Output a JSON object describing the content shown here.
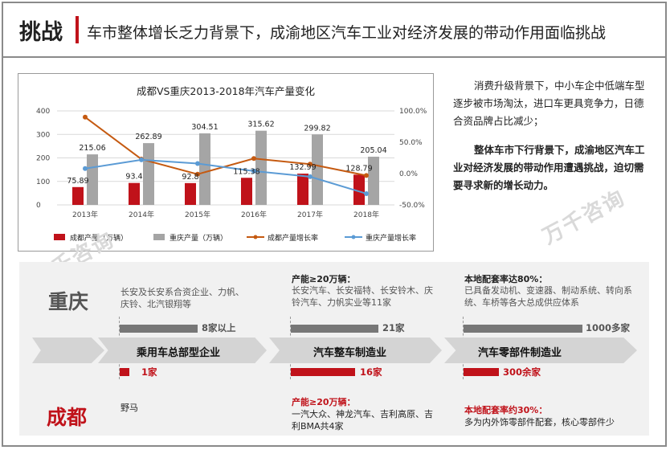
{
  "header": {
    "title": "挑战",
    "subtitle": "车市整体增长乏力背景下，成渝地区汽车工业对经济发展的带动作用面临挑战"
  },
  "colors": {
    "accent": "#c0121a",
    "gray": "#a5a5a5",
    "orange": "#c55a11",
    "blue": "#5b9bd5"
  },
  "chart_data": {
    "type": "bar",
    "title": "成都VS重庆2013-2018年汽车产量变化",
    "categories": [
      "2013年",
      "2014年",
      "2015年",
      "2016年",
      "2017年",
      "2018年"
    ],
    "series": [
      {
        "name": "成都产量（万辆）",
        "values": [
          75.89,
          93.4,
          92.8,
          115.38,
          132.99,
          128.79
        ],
        "axis": "left",
        "kind": "bar",
        "color": "#c0121a"
      },
      {
        "name": "重庆产量（万辆）",
        "values": [
          215.06,
          262.89,
          304.51,
          315.62,
          299.82,
          205.04
        ],
        "axis": "left",
        "kind": "bar",
        "color": "#a5a5a5"
      },
      {
        "name": "成都产量增长率",
        "values": [
          0.9,
          0.23,
          -0.01,
          0.24,
          0.15,
          -0.03
        ],
        "axis": "right",
        "kind": "line",
        "color": "#c55a11"
      },
      {
        "name": "重庆产量增长率",
        "values": [
          0.08,
          0.22,
          0.16,
          0.04,
          -0.05,
          -0.32
        ],
        "axis": "right",
        "kind": "line",
        "color": "#5b9bd5"
      }
    ],
    "y_left": {
      "min": 0,
      "max": 400,
      "ticks": [
        "0",
        "100",
        "200",
        "300",
        "400"
      ]
    },
    "y_right": {
      "min": -0.5,
      "max": 1.0,
      "ticks": [
        "-50.0%",
        "0.0%",
        "50.0%",
        "100.0%"
      ]
    },
    "legend_position": "bottom"
  },
  "watermarks": [
    "万千咨询",
    "万千咨询"
  ],
  "right_text": {
    "p1": "消费升级背景下，中小车企中低端车型逐步被市场淘汰，进口车更具竞争力，日德合资品牌占比减少；",
    "p2": "整体车市下行背景下，成渝地区汽车工业对经济发展的带动作用遭遇挑战，迫切需要寻求新的增长动力。"
  },
  "bottom": {
    "cq_label": "重庆",
    "cd_label": "成都",
    "stages": [
      "乘用车总部型企业",
      "汽车整车制造业",
      "汽车零部件制造业"
    ],
    "cq": [
      {
        "head": "",
        "text": "长安及长安系合资企业、力帆、庆铃、北汽银翔等",
        "value": "8家以上"
      },
      {
        "head": "产能≥20万辆：",
        "text": "长安汽车、长安福特、长安铃木、庆铃汽车、力帆实业等11家",
        "value": "21家"
      },
      {
        "head": "本地配套率达80%：",
        "text": "已具备发动机、变速器、制动系统、转向系统、车桥等各大总成供应体系",
        "value": "1000多家"
      }
    ],
    "cd": [
      {
        "head": "",
        "text": "野马",
        "value": "1家"
      },
      {
        "head": "产能≥20万辆：",
        "text": "一汽大众、神龙汽车、吉利高原、吉利BMA共4家",
        "value": "16家"
      },
      {
        "head": "本地配套率约30%：",
        "text": "多为内外饰零部件配套，核心零部件少",
        "value": "300余家"
      }
    ]
  }
}
